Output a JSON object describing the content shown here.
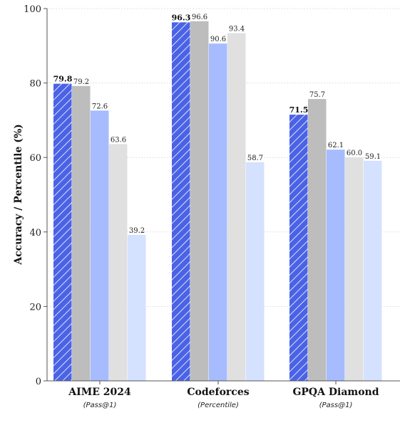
{
  "chart_data": {
    "type": "bar",
    "title": "",
    "xlabel": "",
    "ylabel": "Accuracy / Percentile (%)",
    "ylim": [
      0,
      100
    ],
    "yticks": [
      0,
      20,
      40,
      60,
      80,
      100
    ],
    "grid": true,
    "categories": [
      "AIME 2024",
      "Codeforces",
      "GPQA Diamond"
    ],
    "category_subtitles": [
      "(Pass@1)",
      "(Percentile)",
      "(Pass@1)"
    ],
    "series": [
      {
        "values": [
          79.8,
          96.3,
          71.5
        ],
        "color": "#4a63e6",
        "hatch": true,
        "bold_labels": true
      },
      {
        "values": [
          79.2,
          96.6,
          75.7
        ],
        "color": "#bdbdbd"
      },
      {
        "values": [
          72.6,
          90.6,
          62.1
        ],
        "color": "#a6bcff"
      },
      {
        "values": [
          63.6,
          93.4,
          60.0
        ],
        "color": "#e0e0e0"
      },
      {
        "values": [
          39.2,
          58.7,
          59.1
        ],
        "color": "#d4e1ff"
      }
    ],
    "value_labels": [
      [
        "79.8",
        "96.3",
        "71.5"
      ],
      [
        "79.2",
        "96.6",
        "75.7"
      ],
      [
        "72.6",
        "90.6",
        "62.1"
      ],
      [
        "63.6",
        "93.4",
        "60.0"
      ],
      [
        "39.2",
        "58.7",
        "59.1"
      ]
    ],
    "ytick_labels": [
      "0",
      "20",
      "40",
      "60",
      "80",
      "100"
    ]
  }
}
